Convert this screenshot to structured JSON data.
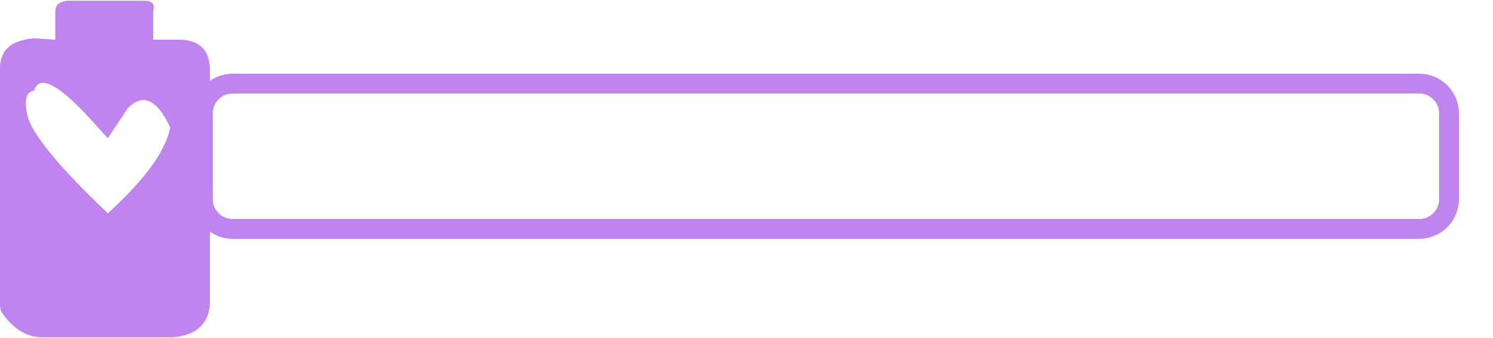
{
  "hud": {
    "colors": {
      "accent": "#c084f0",
      "background": "#ffffff",
      "icon_symbol": "#ffffff"
    },
    "potion_icon": "heart-potion-bottle-icon",
    "meter": {
      "fill_fraction": 0.0
    }
  }
}
